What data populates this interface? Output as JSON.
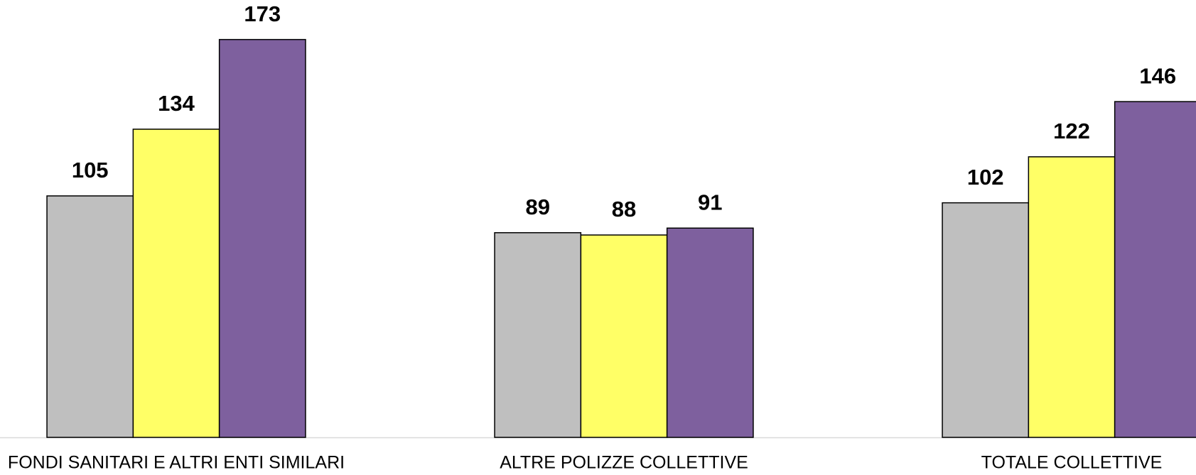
{
  "chart_data": {
    "type": "bar",
    "categories": [
      "FONDI SANITARI E ALTRI ENTI SIMILARI",
      "ALTRE POLIZZE COLLETTIVE",
      "TOTALE COLLETTIVE"
    ],
    "series": [
      {
        "color": "#bfbfbf",
        "values": [
          105,
          89,
          102
        ]
      },
      {
        "color": "#ffff66",
        "values": [
          134,
          88,
          122
        ]
      },
      {
        "color": "#7e609e",
        "values": [
          173,
          91,
          146
        ]
      }
    ],
    "ylim": [
      0,
      190
    ]
  }
}
